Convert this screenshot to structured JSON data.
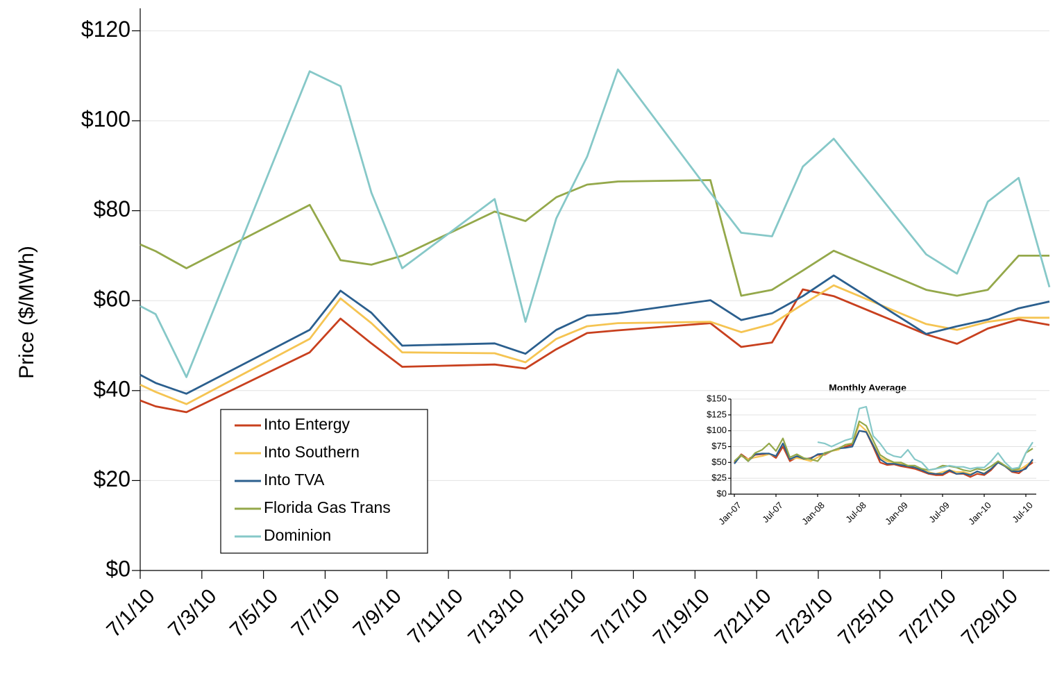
{
  "chart_data": [
    {
      "type": "line",
      "y_label": "Price ($/MWh)",
      "x": [
        1,
        1.5,
        2.5,
        6.5,
        7.5,
        8.5,
        9.5,
        12.5,
        13.5,
        14.5,
        15.5,
        16.5,
        19.5,
        20.5,
        21.5,
        22.5,
        23.5,
        26.5,
        27.5,
        28.5,
        29.5,
        30.5
      ],
      "xlim": [
        1,
        30.5
      ],
      "xticks": [
        {
          "value": 1,
          "label": "7/1/10"
        },
        {
          "value": 3,
          "label": "7/3/10"
        },
        {
          "value": 5,
          "label": "7/5/10"
        },
        {
          "value": 7,
          "label": "7/7/10"
        },
        {
          "value": 9,
          "label": "7/9/10"
        },
        {
          "value": 11,
          "label": "7/11/10"
        },
        {
          "value": 13,
          "label": "7/13/10"
        },
        {
          "value": 15,
          "label": "7/15/10"
        },
        {
          "value": 17,
          "label": "7/17/10"
        },
        {
          "value": 19,
          "label": "7/19/10"
        },
        {
          "value": 21,
          "label": "7/21/10"
        },
        {
          "value": 23,
          "label": "7/23/10"
        },
        {
          "value": 25,
          "label": "7/25/10"
        },
        {
          "value": 27,
          "label": "7/27/10"
        },
        {
          "value": 29,
          "label": "7/29/10"
        }
      ],
      "ylim": [
        0,
        125
      ],
      "yticks": [
        {
          "value": 0,
          "label": "$0"
        },
        {
          "value": 20,
          "label": "$20"
        },
        {
          "value": 40,
          "label": "$40"
        },
        {
          "value": 60,
          "label": "$60"
        },
        {
          "value": 80,
          "label": "$80"
        },
        {
          "value": 100,
          "label": "$100"
        },
        {
          "value": 120,
          "label": "$120"
        }
      ],
      "grid": true,
      "legend": "lower-left",
      "series": [
        {
          "name": "Into Entergy",
          "color": "#c8401e",
          "values": [
            37.8,
            36.5,
            35.2,
            48.5,
            56,
            50.5,
            45.3,
            45.8,
            44.9,
            49.2,
            52.8,
            53.4,
            55,
            49.7,
            50.7,
            62.5,
            61,
            52.5,
            50.4,
            53.8,
            55.8,
            54.6
          ]
        },
        {
          "name": "Into Southern",
          "color": "#f5c452",
          "values": [
            41.3,
            39.7,
            37,
            51.5,
            60.5,
            55,
            48.5,
            48.3,
            46.3,
            51.5,
            54.3,
            55,
            55.3,
            53,
            54.8,
            59.2,
            63.4,
            54.8,
            53.5,
            55.3,
            56.2,
            56.2
          ]
        },
        {
          "name": "Into TVA",
          "color": "#2b5f8e",
          "values": [
            43.5,
            41.7,
            39.3,
            53.5,
            62.2,
            57.3,
            50,
            50.5,
            48.2,
            53.5,
            56.7,
            57.2,
            60.1,
            55.7,
            57.2,
            61,
            65.6,
            52.6,
            54.3,
            55.8,
            58.3,
            59.8
          ]
        },
        {
          "name": "Florida Gas Trans",
          "color": "#94a84a",
          "values": [
            72.5,
            71,
            67.2,
            81.3,
            69,
            68,
            70,
            79.8,
            77.7,
            83,
            85.8,
            86.5,
            86.8,
            61.1,
            62.4,
            66.7,
            71.1,
            62.4,
            61.1,
            62.4,
            70,
            70
          ]
        },
        {
          "name": "Dominion",
          "color": "#86c8c8",
          "values": [
            58.8,
            57,
            43,
            111,
            107.7,
            84,
            67.2,
            82.6,
            55.3,
            78.3,
            92,
            111.4,
            84,
            75.1,
            74.3,
            89.8,
            96,
            70.3,
            66,
            82,
            87.3,
            63
          ]
        }
      ]
    },
    {
      "type": "line",
      "title": "Monthly Average",
      "categories": [
        "Jan-07",
        null,
        null,
        null,
        null,
        null,
        "Jul-07",
        null,
        null,
        null,
        null,
        null,
        "Jan-08",
        null,
        null,
        null,
        null,
        null,
        "Jul-08",
        null,
        null,
        null,
        null,
        null,
        "Jan-09",
        null,
        null,
        null,
        null,
        null,
        "Jul-09",
        null,
        null,
        null,
        null,
        null,
        "Jan-10",
        null,
        null,
        null,
        null,
        null,
        "Jul-10",
        null
      ],
      "ylim": [
        0,
        150
      ],
      "yticks": [
        {
          "value": 0,
          "label": "$0"
        },
        {
          "value": 25,
          "label": "$25"
        },
        {
          "value": 50,
          "label": "$50"
        },
        {
          "value": 75,
          "label": "$75"
        },
        {
          "value": 100,
          "label": "$100"
        },
        {
          "value": 125,
          "label": "$125"
        },
        {
          "value": 150,
          "label": "$150"
        }
      ],
      "grid": true,
      "series": [
        {
          "name": "Into Entergy",
          "color": "#c8401e",
          "values": [
            50,
            63,
            55,
            62,
            63,
            64,
            57,
            75,
            52,
            58,
            55,
            57,
            62,
            62,
            68,
            72,
            75,
            78,
            100,
            98,
            75,
            50,
            46,
            47,
            44,
            42,
            40,
            36,
            32,
            30,
            30,
            36,
            32,
            32,
            27,
            32,
            30,
            38,
            50,
            44,
            35,
            33,
            42,
            50
          ]
        },
        {
          "name": "Into Southern",
          "color": "#f5c452",
          "values": [
            52,
            60,
            55,
            58,
            60,
            63,
            60,
            80,
            55,
            57,
            55,
            52,
            58,
            63,
            68,
            70,
            78,
            80,
            110,
            100,
            78,
            58,
            52,
            50,
            48,
            45,
            42,
            38,
            35,
            32,
            35,
            38,
            35,
            35,
            32,
            35,
            33,
            40,
            50,
            44,
            36,
            38,
            45,
            53
          ]
        },
        {
          "name": "Into TVA",
          "color": "#2b5f8e",
          "values": [
            48,
            62,
            52,
            63,
            64,
            64,
            60,
            80,
            55,
            60,
            56,
            56,
            63,
            64,
            68,
            72,
            73,
            75,
            100,
            98,
            77,
            55,
            48,
            48,
            46,
            44,
            42,
            38,
            33,
            32,
            32,
            38,
            32,
            33,
            30,
            36,
            32,
            40,
            50,
            44,
            36,
            36,
            40,
            55
          ]
        },
        {
          "name": "Florida Gas Trans",
          "color": "#94a84a",
          "values": [
            52,
            62,
            52,
            65,
            70,
            80,
            68,
            88,
            58,
            63,
            57,
            55,
            52,
            65,
            68,
            72,
            78,
            80,
            115,
            108,
            85,
            62,
            55,
            50,
            50,
            45,
            45,
            40,
            38,
            40,
            45,
            44,
            42,
            38,
            36,
            40,
            38,
            44,
            52,
            45,
            38,
            40,
            65,
            72
          ]
        },
        {
          "name": "Dominion",
          "color": "#86c8c8",
          "values": [
            null,
            null,
            null,
            null,
            null,
            null,
            null,
            null,
            null,
            null,
            null,
            null,
            82,
            80,
            75,
            80,
            85,
            88,
            135,
            138,
            92,
            80,
            65,
            60,
            58,
            70,
            55,
            50,
            38,
            40,
            42,
            45,
            43,
            43,
            40,
            42,
            42,
            52,
            65,
            50,
            40,
            42,
            65,
            82
          ]
        }
      ]
    }
  ]
}
